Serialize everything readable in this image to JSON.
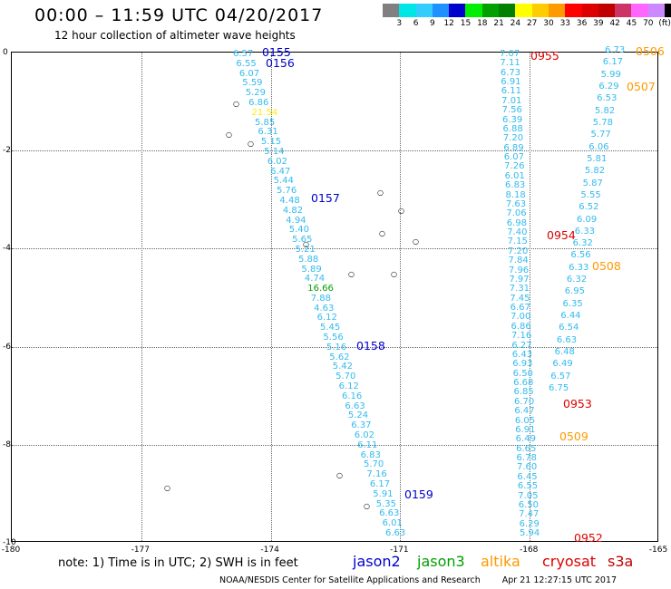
{
  "header": {
    "title": "00:00 – 11:59 UTC 04/20/2017",
    "subtitle": "12 hour collection of altimeter wave heights"
  },
  "legend": {
    "colors": [
      "#808080",
      "#00e5e5",
      "#33ccff",
      "#1e90ff",
      "#0000cc",
      "#00ee00",
      "#00a000",
      "#008000",
      "#ffff00",
      "#ffcc00",
      "#ff9900",
      "#ff0000",
      "#dd0000",
      "#c00000",
      "#cc3366",
      "#ff66ff",
      "#cc88ff",
      "#000000"
    ],
    "labels": [
      "3",
      "6",
      "9",
      "12",
      "15",
      "18",
      "21",
      "24",
      "27",
      "30",
      "33",
      "36",
      "39",
      "42",
      "45",
      "70",
      "(ft)"
    ]
  },
  "axes": {
    "y_ticks": [
      "0",
      "-2",
      "-4",
      "-6",
      "-8",
      "-10"
    ],
    "x_ticks": [
      "-180",
      "-177",
      "-174",
      "-171",
      "-168",
      "-165"
    ]
  },
  "tracks": [
    {
      "name": "jason2",
      "color": "#33bbee",
      "values": [
        "6.57",
        "6.55",
        "6.07",
        "5.59",
        "5.29",
        "6.86",
        "21.54",
        "5.85",
        "6.31",
        "5.15",
        "5.14",
        "6.02",
        "6.47",
        "5.44",
        "5.76",
        "4.48",
        "4.82",
        "4.94",
        "5.40",
        "5.65",
        "5.21",
        "5.88",
        "5.89",
        "4.74",
        "16.66",
        "7.88",
        "4.63",
        "6.12",
        "5.45",
        "5.56",
        "5.16",
        "5.62",
        "5.42",
        "5.70",
        "6.12",
        "6.16",
        "6.63",
        "5.24",
        "6.37",
        "6.02",
        "6.11",
        "6.83",
        "5.70",
        "7.16",
        "6.17",
        "5.91",
        "5.35",
        "6.63",
        "6.01",
        "6.63"
      ]
    },
    {
      "name": "track-a",
      "color": "#33bbee",
      "values": [
        "7.07",
        "7.11",
        "6.73",
        "6.91",
        "6.11",
        "7.01",
        "7.56",
        "6.39",
        "6.88",
        "7.20",
        "6.89",
        "6.07",
        "7.26",
        "6.01",
        "6.83",
        "8.18",
        "7.63",
        "7.06",
        "6.98",
        "7.40",
        "7.15",
        "7.20",
        "7.84",
        "7.96",
        "7.97",
        "7.31",
        "7.45",
        "6.67",
        "7.00",
        "6.86",
        "7.16",
        "6.27",
        "6.43",
        "6.93",
        "6.50",
        "6.68",
        "6.85",
        "6.70",
        "6.47",
        "6.05",
        "6.91",
        "6.49",
        "6.65",
        "6.78",
        "7.60",
        "6.45",
        "6.55",
        "7.05",
        "6.50",
        "7.47",
        "6.29",
        "5.94"
      ]
    },
    {
      "name": "track-b",
      "color": "#33bbee",
      "values": [
        "6.73",
        "6.17",
        "5.99",
        "6.29",
        "6.53",
        "5.82",
        "5.78",
        "5.77",
        "6.06",
        "5.81",
        "5.82",
        "5.87",
        "5.55",
        "6.52",
        "6.09",
        "6.33",
        "6.32",
        "6.56",
        "6.33",
        "6.32",
        "6.95",
        "6.35",
        "6.44",
        "6.54",
        "6.63",
        "6.48",
        "6.49",
        "6.57",
        "6.75"
      ]
    }
  ],
  "time_labels": [
    {
      "text": "0155",
      "color": "#0000cc"
    },
    {
      "text": "0156",
      "color": "#0000cc"
    },
    {
      "text": "0157",
      "color": "#0000cc"
    },
    {
      "text": "0158",
      "color": "#0000cc"
    },
    {
      "text": "0159",
      "color": "#0000cc"
    },
    {
      "text": "0955",
      "color": "#dd0000"
    },
    {
      "text": "0954",
      "color": "#dd0000"
    },
    {
      "text": "0953",
      "color": "#dd0000"
    },
    {
      "text": "0952",
      "color": "#dd0000"
    },
    {
      "text": "0506",
      "color": "#ff9900"
    },
    {
      "text": "0507",
      "color": "#ff9900"
    },
    {
      "text": "0508",
      "color": "#ff9900"
    },
    {
      "text": "0509",
      "color": "#ff9900"
    }
  ],
  "note": "note:  1) Time is in UTC; 2) SWH is in feet",
  "satellites": [
    {
      "name": "jason2",
      "color": "#0000cc"
    },
    {
      "name": "jason3",
      "color": "#00a000"
    },
    {
      "name": "altika",
      "color": "#ff9900"
    },
    {
      "name": "cryosat",
      "color": "#dd0000"
    },
    {
      "name": "s3a",
      "color": "#c00000"
    }
  ],
  "footer": {
    "credit": "NOAA/NESDIS Center for Satellite Applications and Research",
    "timestamp": "Apr 21 12:27:15 UTC 2017"
  }
}
